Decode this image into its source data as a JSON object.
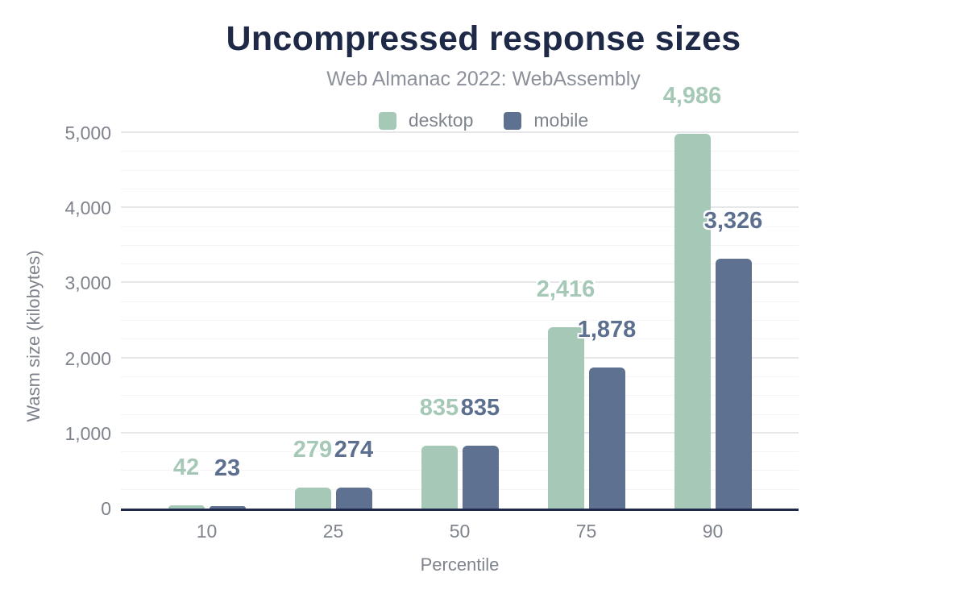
{
  "title": "Uncompressed response sizes",
  "subtitle": "Web Almanac 2022: WebAssembly",
  "colors": {
    "title_text": "#1d2946",
    "subtitle_text": "#8b909a",
    "axis_line": "#1d2946",
    "tick_text": "#7e838c",
    "major_gridline": "#e7e7ea",
    "minor_gridline": "#f4f4f6",
    "background": "#ffffff"
  },
  "chart_data": {
    "type": "bar",
    "title": "Uncompressed response sizes",
    "subtitle": "Web Almanac 2022: WebAssembly",
    "categories": [
      "10",
      "25",
      "50",
      "75",
      "90"
    ],
    "series": [
      {
        "name": "desktop",
        "color": "#a5c9b6",
        "label_color": "#a5c9b6",
        "values": [
          42,
          279,
          835,
          2416,
          4986
        ],
        "labels": [
          "42",
          "279",
          "835",
          "2,416",
          "4,986"
        ]
      },
      {
        "name": "mobile",
        "color": "#5f7190",
        "label_color": "#5d6f8e",
        "values": [
          23,
          274,
          835,
          1878,
          3326
        ],
        "labels": [
          "23",
          "274",
          "835",
          "1,878",
          "3,326"
        ]
      }
    ],
    "xlabel": "Percentile",
    "ylabel": "Wasm size (kilobytes)",
    "ylim": [
      0,
      5000
    ],
    "yticks": [
      0,
      1000,
      2000,
      3000,
      4000,
      5000
    ],
    "ytick_labels": [
      "0",
      "1,000",
      "2,000",
      "3,000",
      "4,000",
      "5,000"
    ],
    "minor_grid_step": 250,
    "major_grid_step": 1000,
    "grid": "horizontal",
    "legend_position": "top-center"
  }
}
